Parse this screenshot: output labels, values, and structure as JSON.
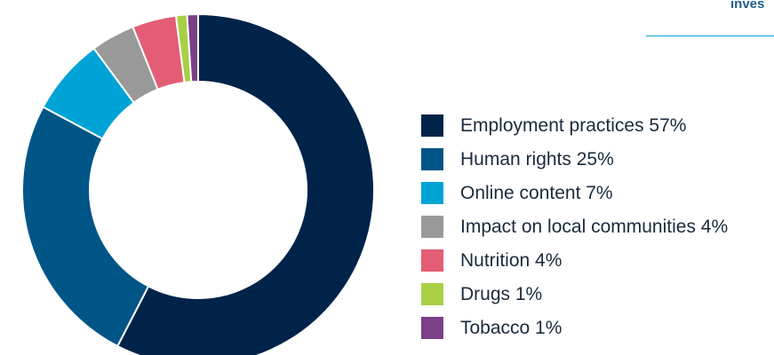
{
  "header": {
    "partial_heading": "inves"
  },
  "chart_data": {
    "type": "pie",
    "style": "donut",
    "categories": [
      "Employment practices",
      "Human rights",
      "Online content",
      "Impact on local communities",
      "Nutrition",
      "Drugs",
      "Tobacco"
    ],
    "values": [
      57,
      25,
      7,
      4,
      4,
      1,
      1
    ],
    "unit": "%",
    "colors": [
      "#00234a",
      "#005587",
      "#00a3d6",
      "#999999",
      "#e35d75",
      "#a8cf45",
      "#7b3f86"
    ],
    "legend": [
      {
        "label": "Employment practices 57%",
        "color": "#00234a"
      },
      {
        "label": "Human rights 25%",
        "color": "#005587"
      },
      {
        "label": "Online content 7%",
        "color": "#00a3d6"
      },
      {
        "label": "Impact on local communities 4%",
        "color": "#999999"
      },
      {
        "label": "Nutrition 4%",
        "color": "#e35d75"
      },
      {
        "label": "Drugs 1%",
        "color": "#a8cf45"
      },
      {
        "label": "Tobacco 1%",
        "color": "#7b3f86"
      }
    ],
    "legend_position": "right",
    "start_angle": "top, clockwise"
  }
}
